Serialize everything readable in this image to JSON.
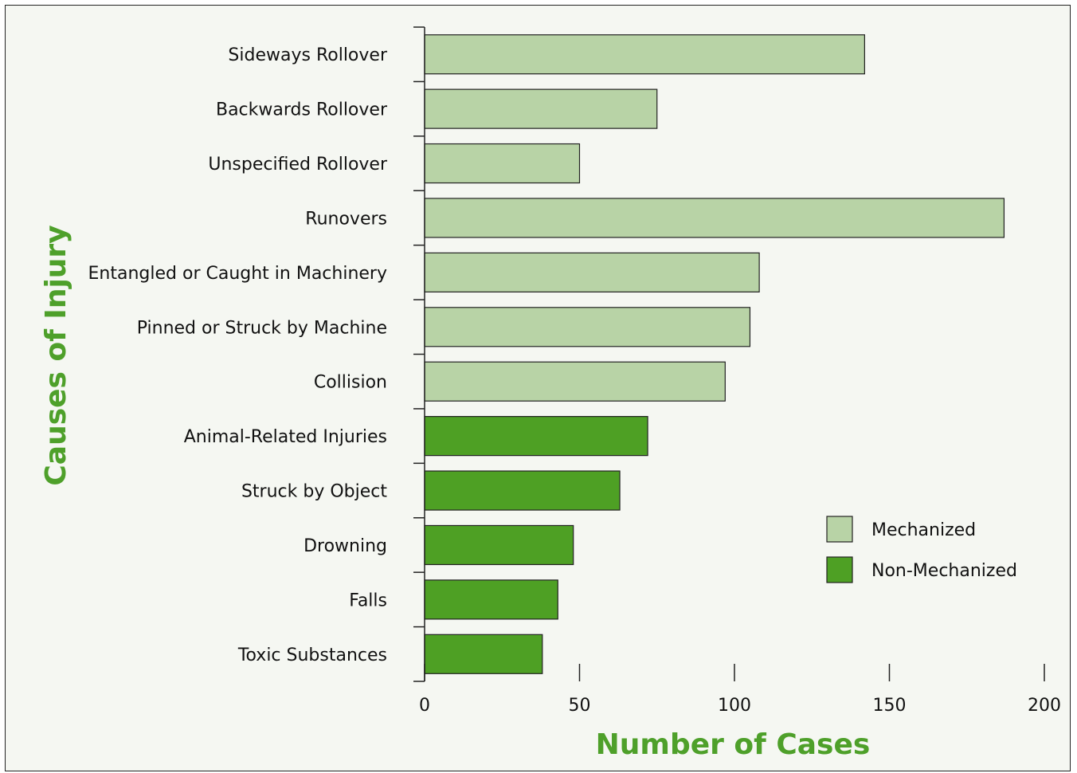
{
  "chart_data": {
    "type": "bar",
    "orientation": "horizontal",
    "title": "",
    "xlabel": "Number of Cases",
    "ylabel": "Causes of Injury",
    "xlim": [
      0,
      200
    ],
    "xticks": [
      0,
      50,
      100,
      150,
      200
    ],
    "grid": false,
    "legend_position": "bottom-right",
    "legend": [
      {
        "label": "Mechanized",
        "color": "#b8d3a6"
      },
      {
        "label": "Non-Mechanized",
        "color": "#4ea024"
      }
    ],
    "categories": [
      "Sideways Rollover",
      "Backwards Rollover",
      "Unspecified Rollover",
      "Runovers",
      "Entangled or Caught in Machinery",
      "Pinned or Struck by Machine",
      "Collision",
      "Animal-Related Injuries",
      "Struck by Object",
      "Drowning",
      "Falls",
      "Toxic Substances"
    ],
    "values": [
      142,
      75,
      50,
      187,
      108,
      105,
      97,
      72,
      63,
      48,
      43,
      38
    ],
    "groups": [
      "Mechanized",
      "Mechanized",
      "Mechanized",
      "Mechanized",
      "Mechanized",
      "Mechanized",
      "Mechanized",
      "Non-Mechanized",
      "Non-Mechanized",
      "Non-Mechanized",
      "Non-Mechanized",
      "Non-Mechanized"
    ]
  }
}
